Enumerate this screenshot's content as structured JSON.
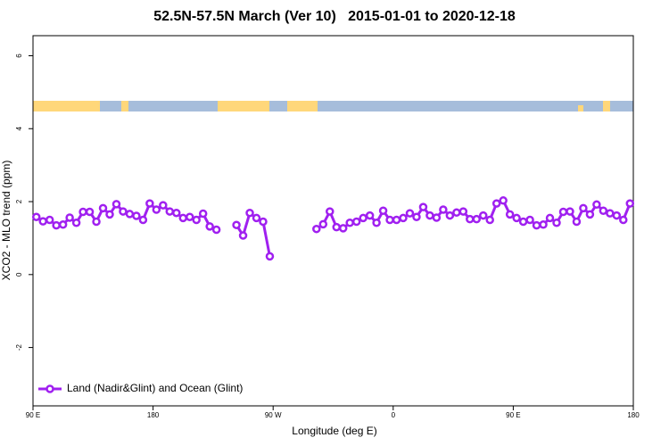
{
  "chart_data": {
    "type": "line",
    "title": "52.5N-57.5N March (Ver 10)   2015-01-01 to 2020-12-18",
    "x_label": "Longitude (deg E)",
    "y_label": "XCO2 - MLO trend (ppm)",
    "xlim": [
      90,
      540
    ],
    "ylim": [
      -3.6,
      6.55
    ],
    "xticks": [
      {
        "value": 90,
        "label": "90 E"
      },
      180,
      {
        "value": 270,
        "label": "90 W"
      },
      {
        "value": 360,
        "label": "0"
      },
      {
        "value": 450,
        "label": "90 E"
      },
      {
        "value": 540,
        "label": "180"
      }
    ],
    "yticks": [
      -2,
      0,
      2,
      4,
      6
    ],
    "legend": "bottom-left",
    "x": [
      92.5,
      97.5,
      102.5,
      107.5,
      112.5,
      117.5,
      122.5,
      127.5,
      132.5,
      137.5,
      142.5,
      147.5,
      152.5,
      157.5,
      162.5,
      167.5,
      172.5,
      177.5,
      182.5,
      187.5,
      192.5,
      197.5,
      202.5,
      207.5,
      212.5,
      217.5,
      222.5,
      227.5,
      232.5,
      237.5,
      242.5,
      247.5,
      252.5,
      257.5,
      262.5,
      267.5,
      272.5,
      277.5,
      282.5,
      287.5,
      292.5,
      297.5,
      302.5,
      307.5,
      312.5,
      317.5,
      322.5,
      327.5,
      332.5,
      337.5,
      342.5,
      347.5,
      352.5,
      357.5,
      362.5,
      367.5,
      372.5,
      377.5,
      382.5,
      387.5,
      392.5,
      397.5,
      402.5,
      407.5,
      412.5,
      417.5,
      422.5,
      427.5,
      432.5,
      437.5,
      442.5,
      447.5,
      452.5,
      457.5,
      462.5,
      467.5,
      472.5,
      477.5,
      482.5,
      487.5,
      492.5,
      497.5,
      502.5,
      507.5,
      512.5,
      517.5,
      522.5,
      527.5,
      532.5,
      537.5
    ],
    "series": [
      {
        "name": "Land (Nadir&Glint) and Ocean (Glint)",
        "color": "#a020f0",
        "values": [
          1.58,
          1.46,
          1.5,
          1.35,
          1.37,
          1.56,
          1.42,
          1.72,
          1.72,
          1.45,
          1.82,
          1.65,
          1.93,
          1.73,
          1.66,
          1.61,
          1.5,
          1.95,
          1.78,
          1.9,
          1.73,
          1.69,
          1.55,
          1.58,
          1.5,
          1.67,
          1.32,
          1.23,
          null,
          null,
          1.36,
          1.07,
          1.69,
          1.55,
          1.45,
          0.5,
          null,
          null,
          null,
          null,
          null,
          null,
          1.25,
          1.38,
          1.73,
          1.3,
          1.27,
          1.42,
          1.45,
          1.55,
          1.62,
          1.42,
          1.75,
          1.5,
          1.5,
          1.55,
          1.68,
          1.58,
          1.85,
          1.62,
          1.56,
          1.78,
          1.62,
          1.7,
          1.73,
          1.52,
          1.52,
          1.62,
          1.5,
          1.95,
          2.03,
          1.65,
          1.55,
          1.45,
          1.5,
          1.35,
          1.37,
          1.55,
          1.42,
          1.72,
          1.73,
          1.45,
          1.82,
          1.65,
          1.92,
          1.75,
          1.68,
          1.62,
          1.5,
          1.95
        ]
      }
    ]
  }
}
